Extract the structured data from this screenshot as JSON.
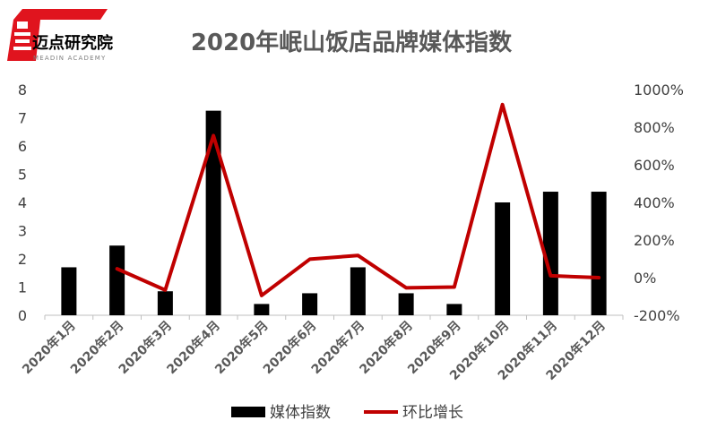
{
  "logo": {
    "name": "迈点研究院",
    "subtitle": "MEADIN ACADEMY",
    "red": "#e0141e"
  },
  "chart_data": {
    "type": "bar",
    "title": "2020年岷山饭店品牌媒体指数",
    "categories": [
      "2020年1月",
      "2020年2月",
      "2020年3月",
      "2020年4月",
      "2020年5月",
      "2020年6月",
      "2020年7月",
      "2020年8月",
      "2020年9月",
      "2020年10月",
      "2020年11月",
      "2020年12月"
    ],
    "series": [
      {
        "name": "媒体指数",
        "type": "bar",
        "axis": "left",
        "color": "#000000",
        "values": [
          1.7,
          2.47,
          0.85,
          7.25,
          0.4,
          0.78,
          1.7,
          0.78,
          0.4,
          4.0,
          4.38,
          4.38
        ]
      },
      {
        "name": "环比增长",
        "type": "line",
        "axis": "right",
        "color": "#c00000",
        "values": [
          null,
          0.47,
          -0.66,
          7.55,
          -0.95,
          0.98,
          1.18,
          -0.54,
          -0.5,
          9.2,
          0.1,
          0.0
        ]
      }
    ],
    "ylim_left": [
      0,
      8
    ],
    "yticks_left": [
      "0",
      "1",
      "2",
      "3",
      "4",
      "5",
      "6",
      "7",
      "8"
    ],
    "ylim_right": [
      -2,
      10
    ],
    "yticks_right": [
      "-200%",
      "0%",
      "200%",
      "400%",
      "600%",
      "800%",
      "1000%"
    ],
    "grid": false,
    "legend": "bottom"
  }
}
